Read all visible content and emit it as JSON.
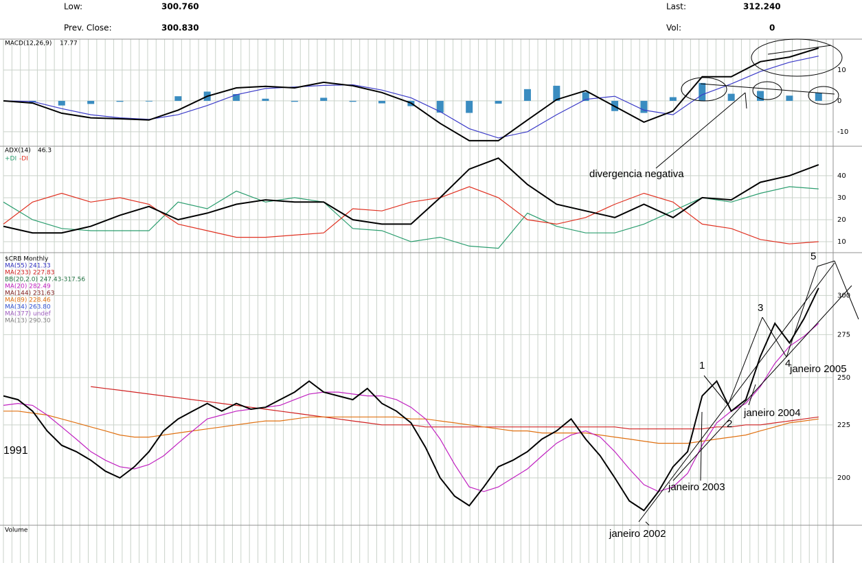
{
  "header": {
    "low_label": "Low:",
    "low": "300.760",
    "prev_label": "Prev. Close:",
    "prev": "300.830",
    "last_label": "Last:",
    "last": "312.240",
    "vol_label": "Vol:",
    "vol": "0"
  },
  "chart_data": [
    {
      "type": "line",
      "title": "MACD(12,26,9)",
      "last": 17.77,
      "x": [
        1991,
        1991.5,
        1992,
        1992.5,
        1993,
        1993.5,
        1994,
        1994.5,
        1995,
        1995.5,
        1996,
        1996.5,
        1997,
        1997.5,
        1998,
        1998.5,
        1999,
        1999.5,
        2000,
        2000.5,
        2001,
        2001.5,
        2002,
        2002.5,
        2003,
        2003.5,
        2004,
        2004.5,
        2005
      ],
      "xlim": [
        1991,
        2005.25
      ],
      "ylim": [
        -14.7,
        20
      ],
      "yticks": [
        -10,
        0,
        10
      ],
      "grid": true,
      "series": [
        {
          "color": "#3a8cc0",
          "style": "bar",
          "values": [
            0,
            -0.5,
            -1.5,
            -1,
            -0.3,
            -0.2,
            1.5,
            3,
            2.2,
            0.7,
            -0.3,
            1,
            -0.3,
            -0.8,
            -1.7,
            -3.8,
            -3.9,
            -0.9,
            3.8,
            4.9,
            2.8,
            -3.3,
            -3.9,
            1.2,
            5.8,
            2.3,
            3.2,
            1.7,
            2.6
          ]
        },
        {
          "color": "#3a3ac8",
          "values": [
            0,
            -0.2,
            -2.5,
            -4.5,
            -5.5,
            -6,
            -4.5,
            -1.5,
            2,
            4,
            4.5,
            5,
            5.2,
            3.5,
            1,
            -3.5,
            -9,
            -12,
            -10,
            -4.5,
            0.5,
            1.5,
            -3,
            -4.5,
            2,
            5.5,
            9.5,
            12.5,
            14.5
          ]
        },
        {
          "color": "#000000",
          "values": [
            0,
            -0.7,
            -4,
            -5.5,
            -5.8,
            -6.2,
            -3,
            1.5,
            4.2,
            4.7,
            4.2,
            6,
            4.9,
            2.7,
            -0.7,
            -7.3,
            -12.9,
            -12.9,
            -6.2,
            0.4,
            3.3,
            -1.8,
            -6.9,
            -3.3,
            7.8,
            7.8,
            12.7,
            14.2,
            17.1
          ]
        }
      ]
    },
    {
      "type": "line",
      "title": "ADX(14)",
      "last": 46.3,
      "plus_di": "+DI",
      "minus_di": "-DI",
      "x": [
        1991,
        1991.5,
        1992,
        1992.5,
        1993,
        1993.5,
        1994,
        1994.5,
        1995,
        1995.5,
        1996,
        1996.5,
        1997,
        1997.5,
        1998,
        1998.5,
        1999,
        1999.5,
        2000,
        2000.5,
        2001,
        2001.5,
        2002,
        2002.5,
        2003,
        2003.5,
        2004,
        2004.5,
        2005
      ],
      "xlim": [
        1991,
        2005.25
      ],
      "ylim": [
        5,
        53.4
      ],
      "yticks": [
        10,
        20,
        30,
        40
      ],
      "grid": true,
      "series": [
        {
          "color": "#2a9d6e",
          "values": [
            28,
            20,
            16,
            15,
            15,
            15,
            28,
            25,
            33,
            28,
            30,
            28,
            16,
            15,
            10,
            12,
            8,
            7,
            23,
            17,
            14,
            14,
            18,
            24,
            30,
            28,
            32,
            35,
            34
          ]
        },
        {
          "color": "#e03020",
          "values": [
            18,
            28,
            32,
            28,
            30,
            27,
            18,
            15,
            12,
            12,
            13,
            14,
            25,
            24,
            28,
            30,
            35,
            30,
            20,
            18,
            21,
            27,
            32,
            28,
            18,
            16,
            11,
            9,
            10
          ]
        },
        {
          "color": "#000000",
          "values": [
            17,
            14,
            14,
            17,
            22,
            26,
            20,
            23,
            27,
            29,
            28,
            28,
            20,
            18,
            18,
            30,
            43,
            48,
            36,
            27,
            24,
            21,
            27,
            21,
            30,
            29,
            37,
            40,
            45
          ]
        }
      ]
    },
    {
      "type": "line",
      "title": "$CRB Monthly",
      "legend": [
        {
          "text": "MA(55) 241.33",
          "color": "#3030c0"
        },
        {
          "text": "MA(233) 227.83",
          "color": "#d02020"
        },
        {
          "text": "BB(20,2.0) 247.43-317.56",
          "color": "#207040"
        },
        {
          "text": "MA(20) 282.49",
          "color": "#c020c0"
        },
        {
          "text": "MA(144) 231.63",
          "color": "#802020"
        },
        {
          "text": "MA(89) 228.46",
          "color": "#e07010"
        },
        {
          "text": "MA(34) 263.80",
          "color": "#3050d0"
        },
        {
          "text": "MA(377) undef",
          "color": "#a060c0"
        },
        {
          "text": "MA(13) 290.30",
          "color": "#808080"
        }
      ],
      "x": [
        1991,
        1991.25,
        1991.5,
        1991.75,
        1992,
        1992.25,
        1992.5,
        1992.75,
        1993,
        1993.25,
        1993.5,
        1993.75,
        1994,
        1994.25,
        1994.5,
        1994.75,
        1995,
        1995.25,
        1995.5,
        1995.75,
        1996,
        1996.25,
        1996.5,
        1996.75,
        1997,
        1997.25,
        1997.5,
        1997.75,
        1998,
        1998.25,
        1998.5,
        1998.75,
        1999,
        1999.25,
        1999.5,
        1999.75,
        2000,
        2000.25,
        2000.5,
        2000.75,
        2001,
        2001.25,
        2001.5,
        2001.75,
        2002,
        2002.25,
        2002.5,
        2002.75,
        2003,
        2003.25,
        2003.5,
        2003.75,
        2004,
        2004.25,
        2004.5,
        2004.75,
        2005
      ],
      "xlim": [
        1991,
        2005.25
      ],
      "ylim": [
        180,
        330
      ],
      "log": true,
      "yticks": [
        200,
        225,
        250,
        275,
        300
      ],
      "grid": true,
      "series": [
        {
          "color": "#d02020",
          "values": [
            null,
            null,
            null,
            null,
            null,
            null,
            245,
            244,
            243,
            242,
            241,
            240,
            239,
            238,
            237,
            236,
            235,
            234,
            233,
            232,
            231,
            230,
            229,
            228,
            227,
            226,
            225,
            225,
            225,
            224,
            224,
            224,
            224,
            224,
            224,
            224,
            224,
            224,
            224,
            224,
            224,
            224,
            224,
            223,
            223,
            223,
            223,
            223,
            223,
            224,
            224,
            225,
            225,
            226,
            227,
            228,
            229
          ]
        },
        {
          "color": "#e07010",
          "values": [
            232,
            232,
            231,
            230,
            228,
            226,
            224,
            222,
            220,
            219,
            219,
            220,
            221,
            222,
            223,
            224,
            225,
            226,
            227,
            227,
            228,
            229,
            229,
            229,
            229,
            229,
            229,
            229,
            228,
            228,
            227,
            226,
            225,
            224,
            223,
            222,
            222,
            221,
            221,
            221,
            221,
            220,
            219,
            218,
            217,
            216,
            216,
            216,
            217,
            218,
            219,
            220,
            222,
            224,
            226,
            227,
            228
          ]
        },
        {
          "color": "#c020c0",
          "values": [
            235,
            236,
            235,
            230,
            224,
            218,
            212,
            208,
            205,
            204,
            206,
            210,
            216,
            222,
            228,
            230,
            232,
            233,
            234,
            235,
            238,
            241,
            242,
            242,
            241,
            240,
            240,
            238,
            234,
            228,
            218,
            206,
            196,
            194,
            196,
            200,
            204,
            210,
            216,
            220,
            222,
            219,
            212,
            204,
            197,
            194,
            196,
            202,
            215,
            226,
            232,
            236,
            245,
            258,
            268,
            274,
            282
          ]
        },
        {
          "color": "#000000",
          "values": [
            240,
            238,
            232,
            222,
            215,
            212,
            208,
            203,
            200,
            205,
            212,
            222,
            228,
            232,
            236,
            232,
            236,
            233,
            234,
            238,
            242,
            248,
            242,
            240,
            238,
            244,
            236,
            232,
            226,
            214,
            200,
            192,
            188,
            196,
            205,
            208,
            212,
            218,
            222,
            228,
            218,
            210,
            200,
            190,
            186,
            194,
            205,
            212,
            240,
            248,
            232,
            238,
            262,
            282,
            270,
            285,
            305
          ]
        }
      ]
    }
  ],
  "volume": {
    "title": "Volume"
  },
  "annotations": [
    "divergencia negativa",
    "1991",
    "janeiro 2002",
    "janeiro 2003",
    "janeiro 2004",
    "janeiro 2005",
    "1",
    "2",
    "3",
    "4",
    "5"
  ]
}
